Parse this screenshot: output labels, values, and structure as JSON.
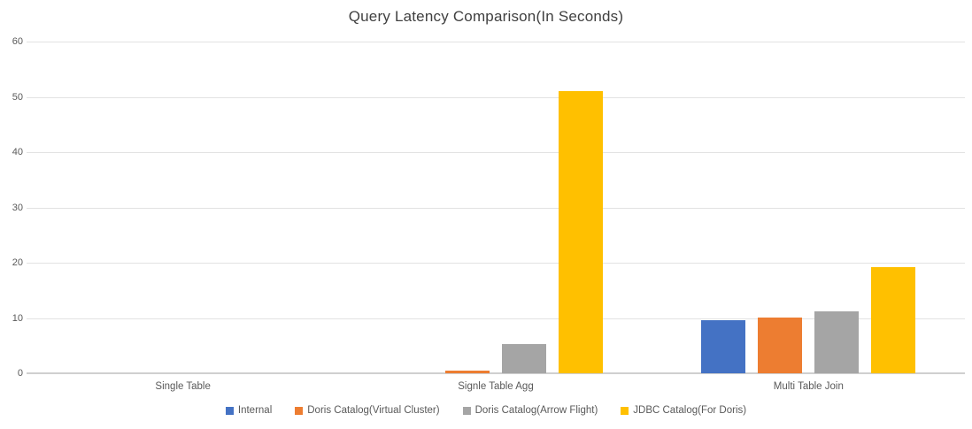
{
  "chart_data": {
    "type": "bar",
    "title": "Query Latency Comparison(In Seconds)",
    "categories": [
      "Single Table",
      "Signle Table Agg",
      "Multi Table Join"
    ],
    "series": [
      {
        "name": "Internal",
        "color": "#4472C4",
        "values": [
          0,
          0,
          9.6
        ]
      },
      {
        "name": "Doris Catalog(Virtual Cluster)",
        "color": "#ED7D31",
        "values": [
          0,
          0.4,
          10.1
        ]
      },
      {
        "name": "Doris Catalog(Arrow Flight)",
        "color": "#A5A5A5",
        "values": [
          0,
          5.3,
          11.2
        ]
      },
      {
        "name": "JDBC Catalog(For Doris)",
        "color": "#FFC000",
        "values": [
          0,
          51,
          19.2
        ]
      }
    ],
    "xlabel": "",
    "ylabel": "",
    "ylim": [
      0,
      60
    ],
    "yticks": [
      0,
      10,
      20,
      30,
      40,
      50,
      60
    ],
    "grid": true,
    "legend_position": "bottom",
    "colors": {
      "gridline": "#e2e2e2",
      "axis_baseline": "#cfcfcf",
      "title_text": "#404040",
      "axis_text": "#595959"
    }
  }
}
